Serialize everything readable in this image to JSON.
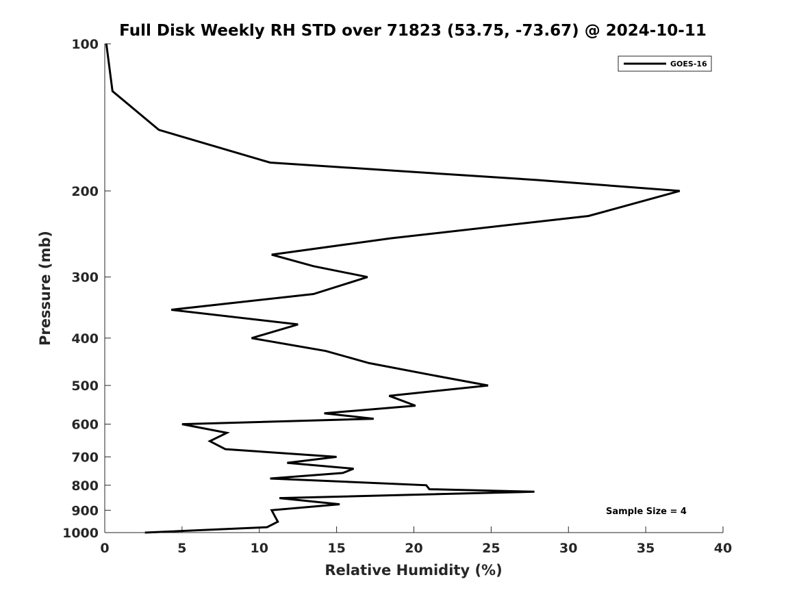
{
  "chart_data": {
    "type": "line",
    "title": "Full Disk Weekly RH STD over 71823 (53.75, -73.67) @ 2024-10-11",
    "xlabel": "Relative Humidity (%)",
    "ylabel": "Pressure (mb)",
    "xlim": [
      0,
      40
    ],
    "ylim": [
      100,
      1000
    ],
    "y_scale": "log",
    "y_reversed": true,
    "x_ticks": [
      0,
      5,
      10,
      15,
      20,
      25,
      30,
      35,
      40
    ],
    "y_ticks": [
      100,
      200,
      300,
      400,
      500,
      600,
      700,
      800,
      900,
      1000
    ],
    "grid": false,
    "legend_position": "top-right",
    "annotation": "Sample Size = 4",
    "series": [
      {
        "name": "GOES-16",
        "color": "#000000",
        "points": [
          [
            0.1,
            100
          ],
          [
            0.5,
            125
          ],
          [
            3.5,
            150
          ],
          [
            10.7,
            175
          ],
          [
            28,
            190
          ],
          [
            37.2,
            200
          ],
          [
            31.3,
            225
          ],
          [
            18.5,
            250
          ],
          [
            10.8,
            270
          ],
          [
            13.5,
            285
          ],
          [
            17,
            300
          ],
          [
            13.5,
            325
          ],
          [
            4.3,
            350
          ],
          [
            12.5,
            375
          ],
          [
            9.5,
            400
          ],
          [
            14.3,
            425
          ],
          [
            17.1,
            450
          ],
          [
            21,
            475
          ],
          [
            24.8,
            500
          ],
          [
            18.4,
            525
          ],
          [
            20.1,
            550
          ],
          [
            14.2,
            570
          ],
          [
            17.4,
            585
          ],
          [
            5,
            600
          ],
          [
            7.9,
            625
          ],
          [
            6.8,
            650
          ],
          [
            7.8,
            675
          ],
          [
            15,
            700
          ],
          [
            11.8,
            720
          ],
          [
            16.1,
            740
          ],
          [
            15.4,
            755
          ],
          [
            10.7,
            775
          ],
          [
            20.8,
            800
          ],
          [
            21,
            815
          ],
          [
            27.8,
            825
          ],
          [
            11.3,
            850
          ],
          [
            15.2,
            875
          ],
          [
            10.8,
            900
          ],
          [
            11,
            925
          ],
          [
            11.2,
            950
          ],
          [
            10.5,
            975
          ],
          [
            2.6,
            1000
          ]
        ]
      }
    ]
  }
}
